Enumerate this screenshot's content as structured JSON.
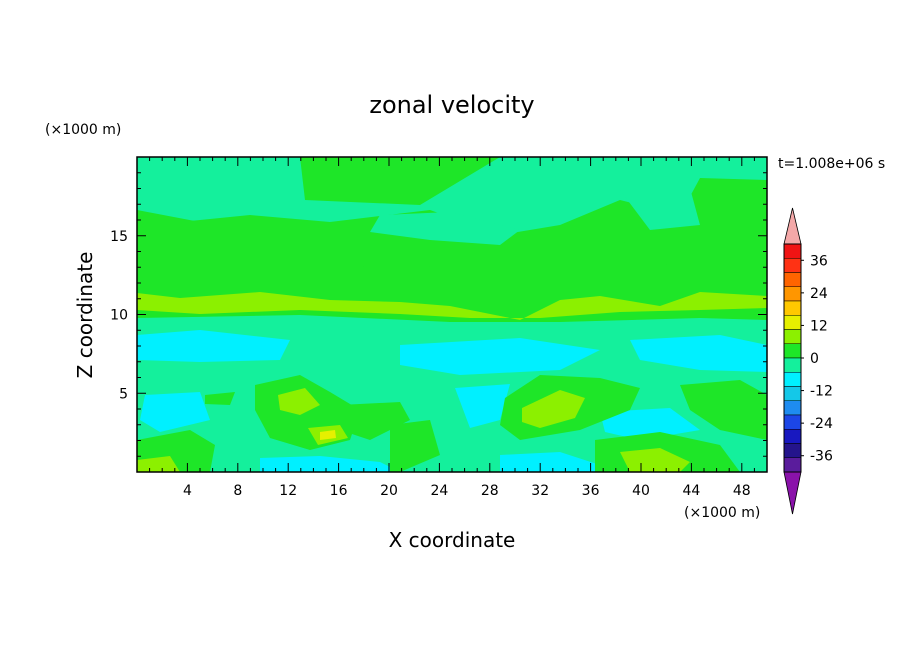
{
  "chart_data": {
    "type": "heatmap",
    "title": "zonal velocity",
    "xlabel": "X coordinate",
    "ylabel": "Z coordinate",
    "x_unit": "(×1000 m)",
    "y_unit": "(×1000 m)",
    "time_label": "t=1.008e+06 s",
    "xlim": [
      0,
      50
    ],
    "ylim": [
      0,
      20
    ],
    "xticks": [
      4,
      8,
      12,
      16,
      20,
      24,
      28,
      32,
      36,
      40,
      44,
      48
    ],
    "yticks": [
      5,
      10,
      15
    ],
    "colorbar": {
      "levels": [
        -42,
        -36,
        -30,
        -24,
        -18,
        -12,
        -6,
        0,
        6,
        12,
        18,
        24,
        30,
        36,
        42
      ],
      "colors": [
        "#5a1c9c",
        "#24148c",
        "#1818c0",
        "#1c46e6",
        "#1e8cf0",
        "#14c8e8",
        "#00f0ff",
        "#14f09c",
        "#1ee628",
        "#8cf000",
        "#e6f000",
        "#ffc800",
        "#ff9600",
        "#ff6400",
        "#ff3214",
        "#f01414"
      ],
      "under_color": "#8a12aa",
      "over_color": "#f4a8a8",
      "tick_labels": [
        "36",
        "24",
        "12",
        "0",
        "-12",
        "-24",
        "-36"
      ]
    },
    "shown_value_range": [
      -10,
      14
    ]
  }
}
